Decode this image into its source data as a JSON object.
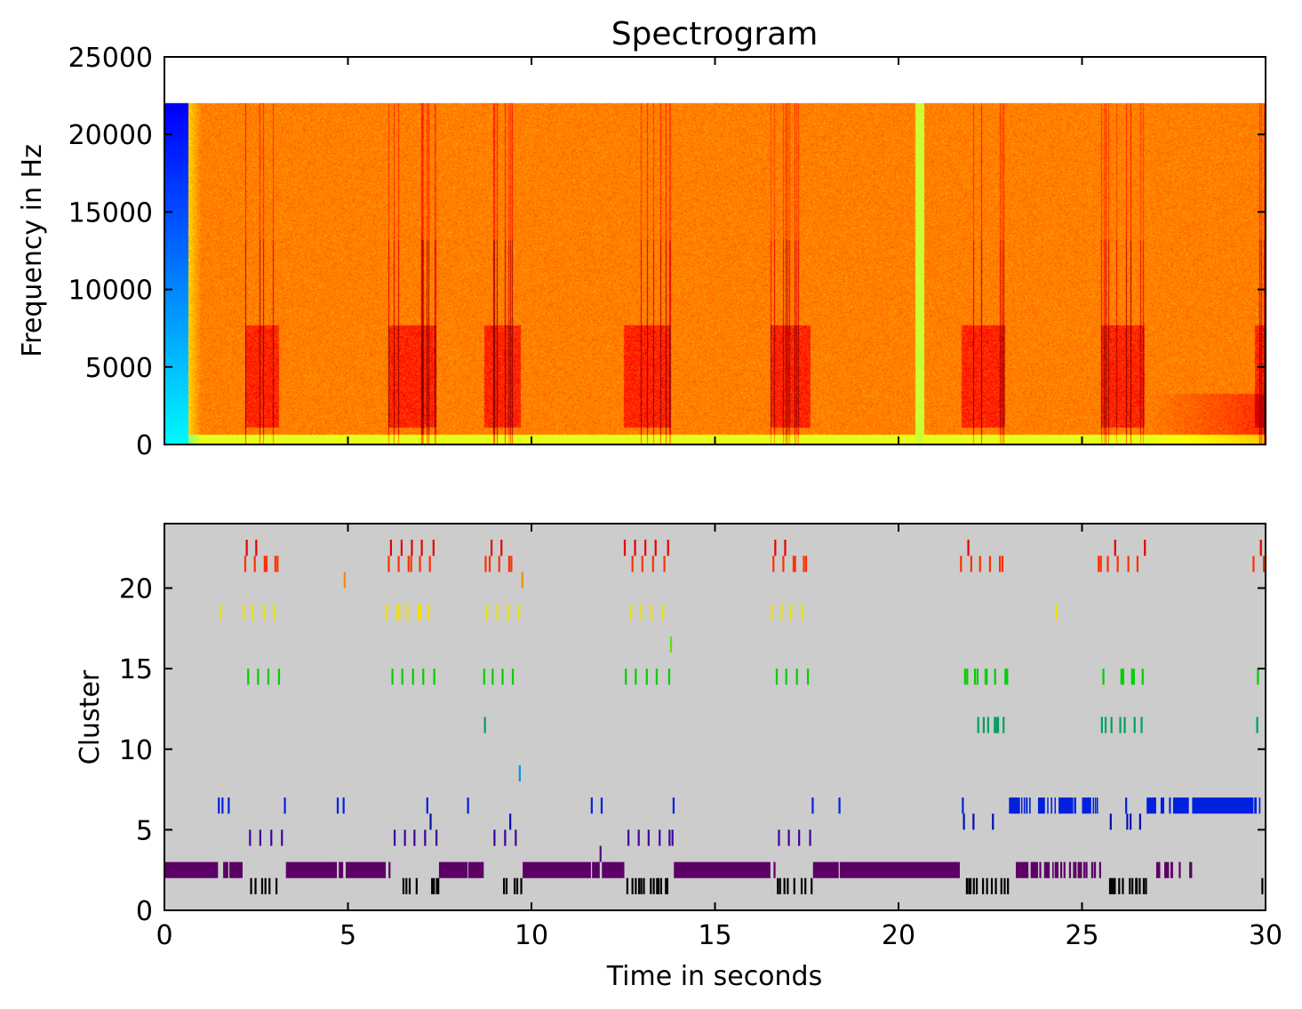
{
  "chart_data": [
    {
      "type": "heatmap",
      "title": "Spectrogram",
      "xlabel": "",
      "ylabel": "Frequency in Hz",
      "xlim": [
        0,
        30
      ],
      "ylim": [
        0,
        25000
      ],
      "max_frequency": 22050,
      "yticks": [
        0,
        5000,
        10000,
        15000,
        20000,
        25000
      ],
      "xticks": [
        0,
        5,
        10,
        15,
        20,
        25,
        30
      ],
      "colormap": "jet",
      "silent_interval": [
        0,
        0.65
      ],
      "low_energy_interval": [
        20.45,
        20.7
      ],
      "call_bursts": [
        [
          2.2,
          3.1
        ],
        [
          6.1,
          7.4
        ],
        [
          8.7,
          9.7
        ],
        [
          12.5,
          13.8
        ],
        [
          16.5,
          17.6
        ],
        [
          21.7,
          22.9
        ],
        [
          25.5,
          26.7
        ],
        [
          29.7,
          30
        ]
      ]
    },
    {
      "type": "scatter",
      "title": "",
      "xlabel": "Time in seconds",
      "ylabel": "Cluster",
      "xlim": [
        0,
        30
      ],
      "ylim": [
        0,
        24
      ],
      "xticks": [
        0,
        5,
        10,
        15,
        20,
        25,
        30
      ],
      "yticks": [
        0,
        5,
        10,
        15,
        20
      ],
      "background": "#cccccc",
      "clusters": [
        {
          "cluster": 1,
          "color": "#000000",
          "events": [
            2.36,
            2.48,
            2.66,
            2.75,
            2.86,
            3.05,
            6.51,
            6.59,
            6.68,
            6.87,
            7.29,
            7.34,
            7.42,
            7.46,
            9.25,
            9.32,
            9.54,
            9.61,
            9.72,
            12.61,
            12.75,
            12.84,
            12.93,
            12.99,
            13.06,
            13.25,
            13.33,
            13.42,
            13.46,
            13.53,
            13.66,
            13.7,
            16.71,
            16.77,
            16.89,
            16.98,
            17.16,
            17.36,
            17.46,
            17.63,
            21.86,
            21.92,
            21.96,
            22.05,
            22.13,
            22.3,
            22.41,
            22.54,
            22.65,
            22.8,
            22.89,
            22.98,
            25.76,
            25.8,
            25.85,
            25.89,
            26.01,
            26.11,
            26.3,
            26.37,
            26.47,
            26.49,
            26.57,
            26.68,
            26.74,
            29.91
          ]
        },
        {
          "cluster": 2,
          "color": "#5c0066",
          "events": [
            [
              0,
              1.46
            ],
            [
              1.6,
              1.74
            ],
            [
              1.77,
              2.13
            ],
            [
              3.31,
              4.7
            ],
            [
              4.75,
              4.87
            ],
            [
              4.94,
              6.03
            ],
            6.13,
            [
              7.48,
              8.26
            ],
            [
              8.28,
              8.7
            ],
            [
              9.76,
              11.62
            ],
            [
              11.65,
              11.86
            ],
            [
              11.92,
              12.53
            ],
            [
              13.88,
              16.51
            ],
            16.62,
            [
              17.67,
              18.37
            ],
            [
              18.4,
              21.67
            ],
            23.22,
            23.27,
            23.31,
            23.36,
            23.41,
            23.46,
            23.51,
            [
              23.6,
              23.8
            ],
            23.86,
            23.99,
            24.04,
            24.09,
            [
              24.19,
              24.23
            ],
            24.28,
            24.33,
            24.43,
            24.52,
            24.67,
            24.78,
            24.82,
            [
              24.88,
              25.0
            ],
            25.06,
            25.12,
            [
              25.25,
              25.31
            ],
            25.35,
            25.49,
            [
              27.02,
              27.13
            ],
            [
              27.24,
              27.37
            ],
            [
              27.41,
              27.48
            ],
            27.66,
            [
              27.92,
              28.0
            ]
          ]
        },
        {
          "cluster": 3,
          "color": "#5c0080",
          "events": [
            11.88
          ]
        },
        {
          "cluster": 4,
          "color": "#4000a0",
          "events": [
            2.33,
            2.61,
            2.91,
            3.2,
            6.27,
            6.55,
            6.81,
            7.1,
            7.41,
            8.99,
            9.28,
            9.57,
            12.64,
            12.92,
            13.19,
            13.49,
            13.76,
            13.84,
            16.74,
            17.01,
            17.29,
            17.59
          ]
        },
        {
          "cluster": 5,
          "color": "#0010b0",
          "events": [
            7.25,
            9.42,
            21.78,
            22.04,
            22.57,
            25.78,
            26.23,
            26.32,
            26.58
          ]
        },
        {
          "cluster": 6,
          "color": "#0020e0",
          "events": [
            1.48,
            1.58,
            1.75,
            3.28,
            4.72,
            4.88,
            7.16,
            8.27,
            11.64,
            11.91,
            13.87,
            17.66,
            18.39,
            21.75,
            [
              23.01,
              23.31
            ],
            [
              23.34,
              23.37
            ],
            [
              23.41,
              23.45
            ],
            [
              23.47,
              23.52
            ],
            [
              23.56,
              23.6
            ],
            [
              23.8,
              23.99
            ],
            [
              24.05,
              24.07
            ],
            [
              24.15,
              24.19
            ],
            [
              24.25,
              24.28
            ],
            [
              24.36,
              24.76
            ],
            [
              24.78,
              24.84
            ],
            [
              25.0,
              25.25
            ],
            [
              25.29,
              25.33
            ],
            [
              25.35,
              25.37
            ],
            [
              25.4,
              25.42
            ],
            26.2,
            [
              26.76,
              27.02
            ],
            [
              27.14,
              27.24
            ],
            [
              27.37,
              27.42
            ],
            [
              27.48,
              27.91
            ],
            [
              28.0,
              29.67
            ],
            [
              29.69,
              29.76
            ],
            [
              29.82,
              29.86
            ]
          ]
        },
        {
          "cluster": 8,
          "color": "#1090e0",
          "events": [
            9.68
          ]
        },
        {
          "cluster": 11,
          "color": "#00a060",
          "events": [
            8.73,
            22.17,
            22.32,
            22.44,
            22.62,
            22.67,
            22.71,
            22.86,
            25.54,
            25.64,
            25.8,
            26.04,
            26.16,
            26.43,
            26.62,
            29.77
          ]
        },
        {
          "cluster": 14,
          "color": "#00d000",
          "events": [
            2.28,
            2.55,
            2.83,
            3.12,
            6.21,
            6.48,
            6.77,
            7.05,
            7.35,
            8.71,
            8.94,
            9.21,
            9.49,
            12.57,
            12.84,
            13.14,
            13.41,
            13.75,
            16.68,
            16.94,
            17.23,
            17.53,
            21.81,
            21.87,
            22.08,
            22.15,
            22.37,
            22.4,
            22.63,
            22.91,
            22.96,
            25.58,
            26.07,
            26.12,
            26.36,
            26.41,
            26.65,
            29.79
          ]
        },
        {
          "cluster": 16,
          "color": "#60e000",
          "events": [
            13.8
          ]
        },
        {
          "cluster": 18,
          "color": "#f0e000",
          "events": [
            1.54,
            2.16,
            2.4,
            2.71,
            2.99,
            6.06,
            6.34,
            6.4,
            6.62,
            6.91,
            6.97,
            7.2,
            8.79,
            9.07,
            9.36,
            9.66,
            12.7,
            12.99,
            13.27,
            13.57,
            16.54,
            16.81,
            17.07,
            17.38,
            24.3
          ]
        },
        {
          "cluster": 20,
          "color": "#f09000",
          "events": [
            4.91,
            9.75
          ]
        },
        {
          "cluster": 21,
          "color": "#ff3000",
          "events": [
            2.2,
            2.46,
            2.73,
            2.78,
            3.02,
            3.08,
            6.11,
            6.38,
            6.65,
            6.72,
            6.96,
            7.23,
            8.75,
            8.86,
            9.12,
            9.39,
            9.45,
            12.75,
            13.02,
            13.31,
            13.62,
            16.59,
            16.86,
            17.14,
            17.18,
            17.42,
            17.48,
            21.7,
            21.98,
            22.22,
            22.49,
            22.76,
            22.83,
            25.45,
            25.51,
            25.7,
            25.97,
            26.26,
            26.51,
            29.67,
            29.95
          ]
        },
        {
          "cluster": 22,
          "color": "#e80000",
          "events": [
            2.24,
            2.5,
            6.17,
            6.46,
            6.74,
            7.01,
            7.33,
            8.91,
            9.18,
            12.54,
            12.82,
            13.1,
            13.38,
            13.72,
            16.64,
            16.91,
            21.9,
            25.9,
            26.71,
            29.87
          ]
        }
      ]
    }
  ]
}
